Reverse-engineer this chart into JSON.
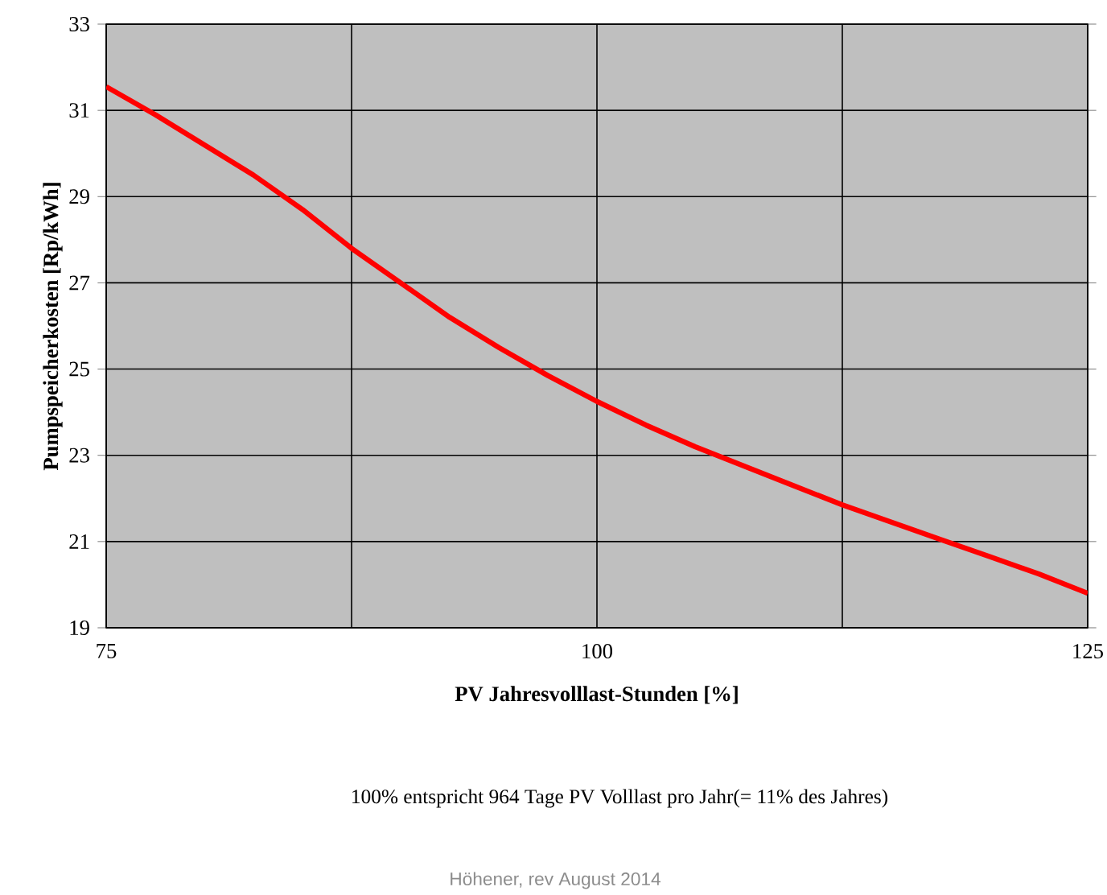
{
  "chart_data": {
    "type": "line",
    "xlabel": "PV Jahresvolllast-Stunden  [%]",
    "ylabel": "Pumpspeicherkosten  [Rp/kWh]",
    "annotations": [
      "100% entspricht 964 Tage PV Volllast pro Jahr(= 11% des Jahres)",
      "Höhener, rev August 2014"
    ],
    "x": [
      75,
      77.5,
      80,
      82.5,
      85,
      87.5,
      90,
      92.5,
      95,
      97.5,
      100,
      102.5,
      105,
      107.5,
      110,
      112.5,
      115,
      117.5,
      120,
      122.5,
      125
    ],
    "series": [
      {
        "color": "#ff0000",
        "values": [
          31.55,
          30.9,
          30.2,
          29.5,
          28.7,
          27.8,
          27.0,
          26.2,
          25.5,
          24.85,
          24.25,
          23.7,
          23.2,
          22.75,
          22.3,
          21.85,
          21.45,
          21.05,
          20.65,
          20.25,
          19.8
        ]
      }
    ],
    "xlim": [
      75,
      125
    ],
    "ylim": [
      19,
      33
    ],
    "xticks": [
      75,
      {
        "value": 87.5,
        "label": null
      },
      100,
      {
        "value": 112.5,
        "label": null
      },
      125
    ],
    "yticks": [
      19,
      21,
      23,
      25,
      27,
      29,
      31,
      33
    ],
    "grid": true,
    "marker": "none",
    "line_style": "solid"
  }
}
